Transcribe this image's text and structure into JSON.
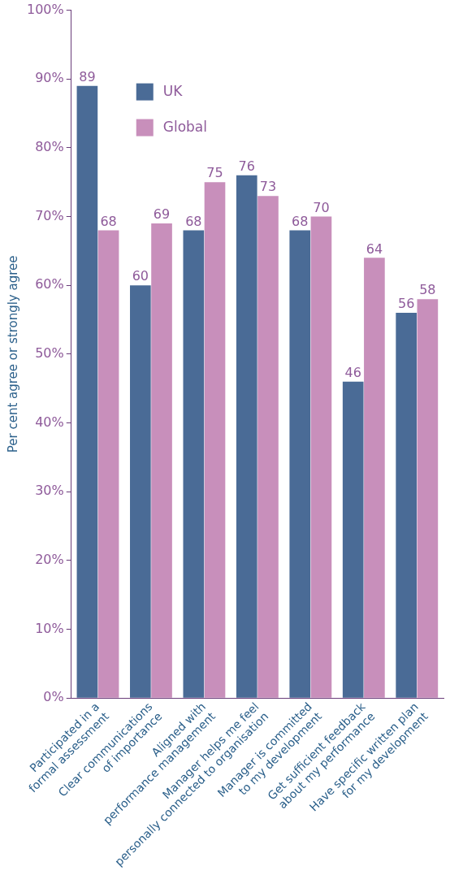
{
  "chart_data": {
    "type": "bar",
    "ylabel": "Per cent agree or strongly agree",
    "categories": [
      "Participated in a\nformal assessment",
      "Clear communications\nof importance",
      "Aligned with\nperformance management",
      "Manager helps me feel\npersonally connected to organisation",
      "Manager is committed\nto my development",
      "Get sufficient feedback\nabout my performance",
      "Have specific written plan\nfor my development"
    ],
    "series": [
      {
        "name": "UK",
        "color": "#4a6b96",
        "values": [
          89,
          60,
          68,
          76,
          68,
          46,
          56
        ]
      },
      {
        "name": "Global",
        "color": "#c88fbb",
        "values": [
          68,
          69,
          75,
          73,
          70,
          64,
          58
        ]
      }
    ],
    "ylim": [
      0,
      100
    ],
    "yticks": [
      {
        "value": 0,
        "label": "0%"
      },
      {
        "value": 10,
        "label": "10%"
      },
      {
        "value": 20,
        "label": "20%"
      },
      {
        "value": 30,
        "label": "30%"
      },
      {
        "value": 40,
        "label": "40%"
      },
      {
        "value": 50,
        "label": "50%"
      },
      {
        "value": 60,
        "label": "60%"
      },
      {
        "value": 70,
        "label": "70%"
      },
      {
        "value": 80,
        "label": "80%"
      },
      {
        "value": 90,
        "label": "90%"
      },
      {
        "value": 100,
        "label": "100%"
      }
    ],
    "data_labels": true,
    "grid": false,
    "legend": "top left"
  }
}
